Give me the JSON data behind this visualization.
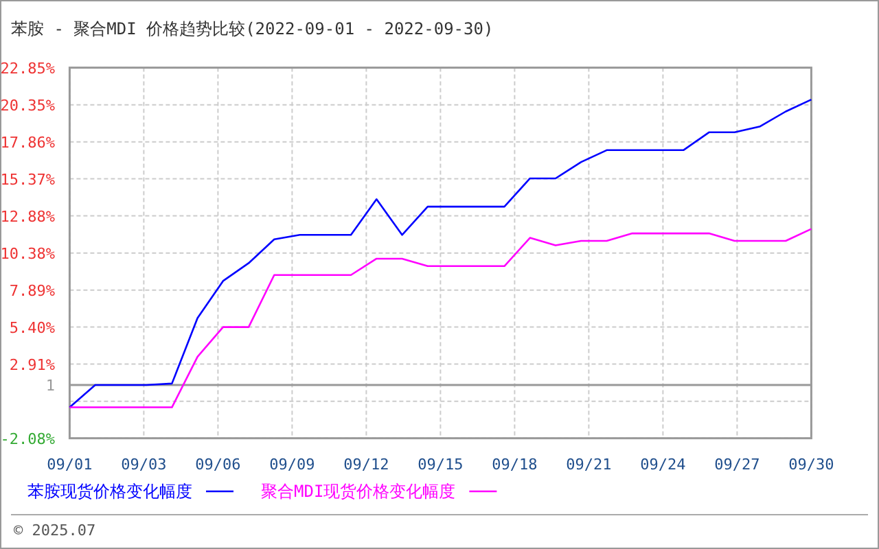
{
  "chart_data": {
    "type": "line",
    "title": "苯胺 - 聚合MDI 价格趋势比较(2022-09-01 - 2022-09-30)",
    "x": [
      "2022-09-01",
      "2022-09-02",
      "2022-09-03",
      "2022-09-04",
      "2022-09-05",
      "2022-09-06",
      "2022-09-07",
      "2022-09-08",
      "2022-09-09",
      "2022-09-10",
      "2022-09-11",
      "2022-09-12",
      "2022-09-13",
      "2022-09-14",
      "2022-09-15",
      "2022-09-16",
      "2022-09-17",
      "2022-09-18",
      "2022-09-19",
      "2022-09-20",
      "2022-09-21",
      "2022-09-22",
      "2022-09-23",
      "2022-09-24",
      "2022-09-25",
      "2022-09-26",
      "2022-09-27",
      "2022-09-28",
      "2022-09-29",
      "2022-09-30"
    ],
    "series": [
      {
        "name": "苯胺现货价格变化幅度",
        "color": "#0000ff",
        "values": [
          0,
          1.5,
          1.5,
          1.5,
          1.6,
          6.0,
          8.5,
          9.7,
          11.3,
          11.6,
          11.6,
          11.6,
          14.0,
          11.6,
          13.5,
          13.5,
          13.5,
          13.5,
          15.4,
          15.4,
          16.5,
          17.3,
          17.3,
          17.3,
          17.3,
          18.5,
          18.5,
          18.9,
          19.9,
          20.7
        ]
      },
      {
        "name": "聚合MDI现货价格变化幅度",
        "color": "#ff00ff",
        "values": [
          0,
          0,
          0,
          0,
          0,
          3.4,
          5.4,
          5.4,
          8.9,
          8.9,
          8.9,
          8.9,
          10.0,
          10.0,
          9.5,
          9.5,
          9.5,
          9.5,
          11.4,
          10.9,
          11.2,
          11.2,
          11.7,
          11.7,
          11.7,
          11.7,
          11.2,
          11.2,
          11.2,
          12.0
        ]
      }
    ],
    "xlim": [
      "2022-09-01",
      "2022-09-30"
    ],
    "xticks": [
      {
        "value": "2022-09-01",
        "label": "09/01"
      },
      {
        "value": "2022-09-03T21:36",
        "label": "09/03"
      },
      {
        "value": "2022-09-06T19:12",
        "label": "09/06"
      },
      {
        "value": "2022-09-09T16:48",
        "label": "09/09"
      },
      {
        "value": "2022-09-12T14:24",
        "label": "09/12"
      },
      {
        "value": "2022-09-15T12:00",
        "label": "09/15"
      },
      {
        "value": "2022-09-18T09:36",
        "label": "09/18"
      },
      {
        "value": "2022-09-21T07:12",
        "label": "09/21"
      },
      {
        "value": "2022-09-24T04:48",
        "label": "09/24"
      },
      {
        "value": "2022-09-27T02:24",
        "label": "09/27"
      },
      {
        "value": "2022-09-30",
        "label": "09/30"
      }
    ],
    "ylim": [
      -2.08,
      22.85
    ],
    "yticks": [
      {
        "value": -2.08,
        "label": "-2.08%"
      },
      {
        "value": 0.41,
        "label": null
      },
      {
        "value": 1.5,
        "label": "1"
      },
      {
        "value": 2.91,
        "label": "2.91%"
      },
      {
        "value": 5.4,
        "label": "5.40%"
      },
      {
        "value": 7.89,
        "label": "7.89%"
      },
      {
        "value": 10.38,
        "label": "10.38%"
      },
      {
        "value": 12.88,
        "label": "12.88%"
      },
      {
        "value": 15.37,
        "label": "15.37%"
      },
      {
        "value": 17.86,
        "label": "17.86%"
      },
      {
        "value": 20.35,
        "label": "20.35%"
      },
      {
        "value": 22.85,
        "label": "22.85%"
      }
    ],
    "ref_lines": [
      {
        "axis": "y",
        "value": 1.5,
        "color": "#999999",
        "line_style": "solid"
      }
    ],
    "grid": true,
    "legend": "bottom",
    "marker": "none",
    "line_style": "solid",
    "annotations": [
      "© 2025.07"
    ]
  }
}
